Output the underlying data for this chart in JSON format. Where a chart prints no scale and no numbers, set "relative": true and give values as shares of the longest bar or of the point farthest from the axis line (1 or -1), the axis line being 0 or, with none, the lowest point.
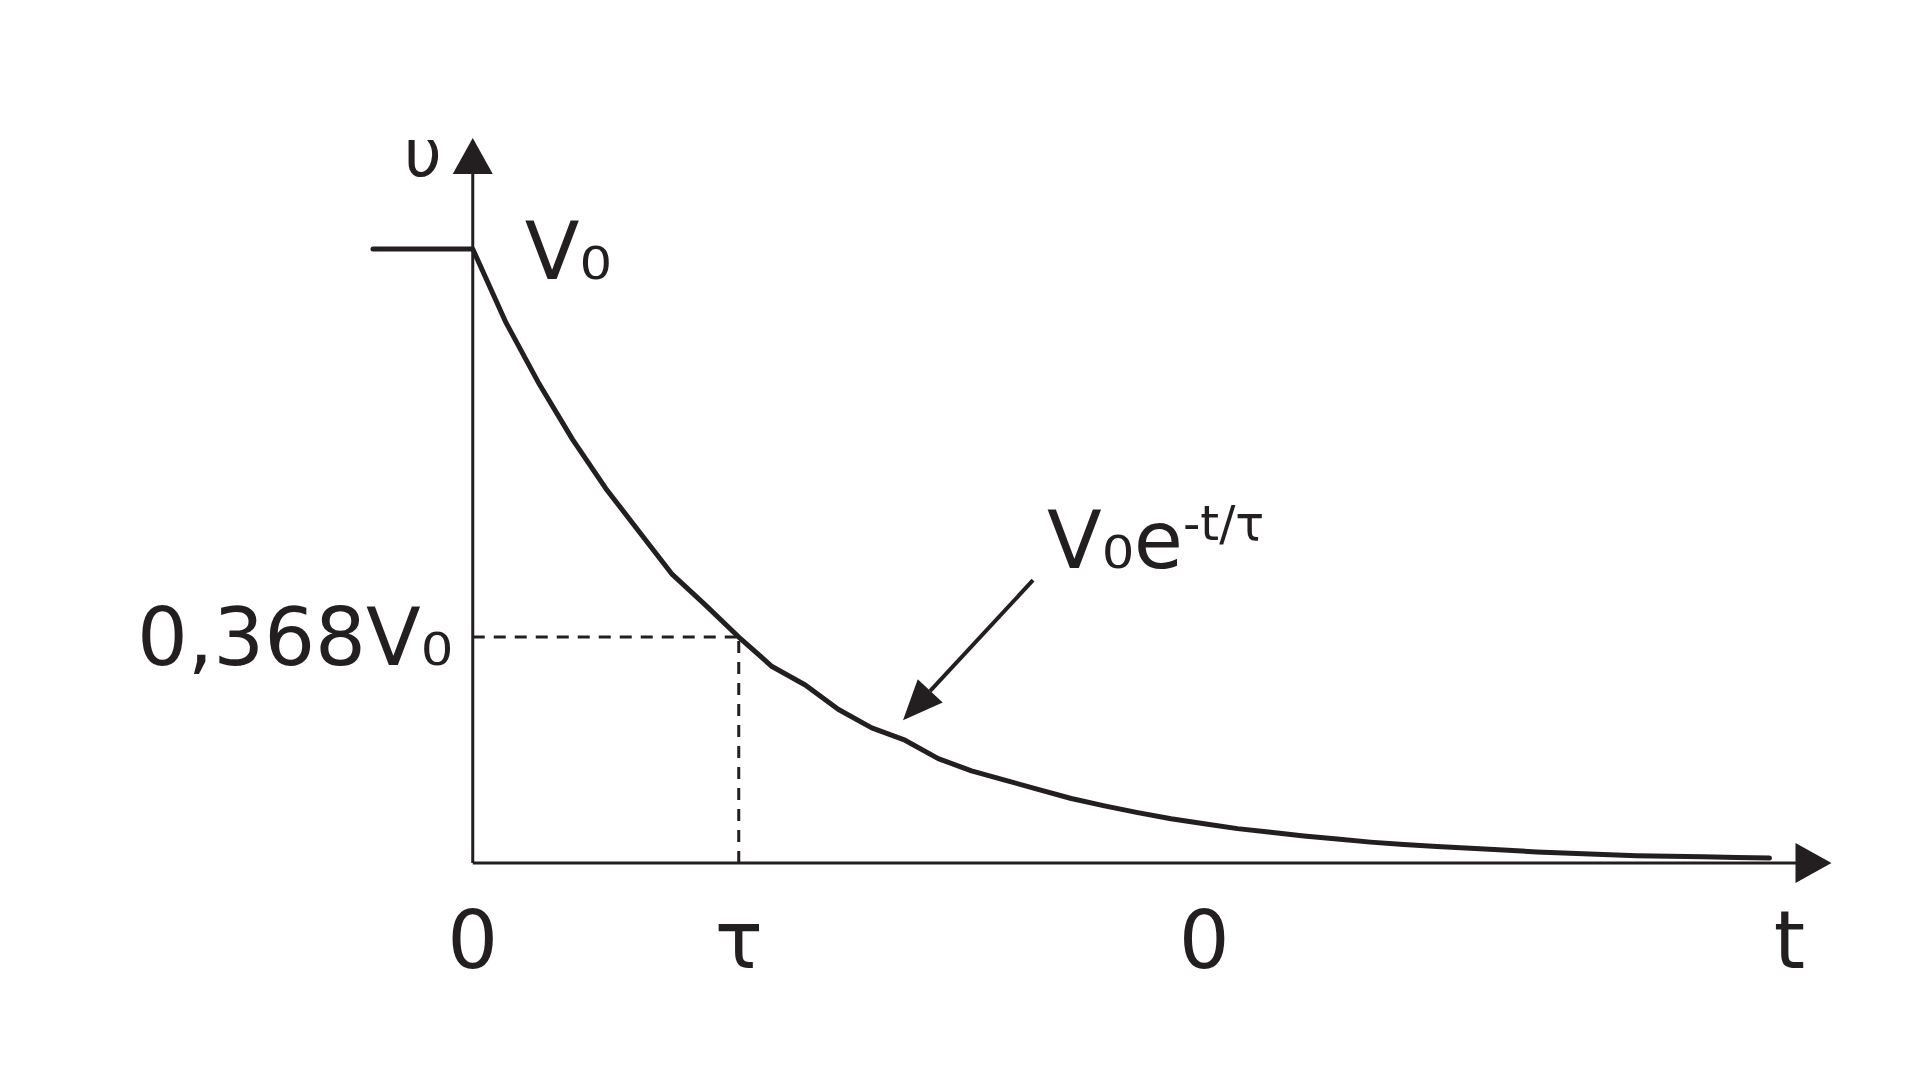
{
  "chart_data": {
    "type": "line",
    "xlabel": "t",
    "ylabel": "υ",
    "relative": true,
    "categories": [
      null,
      null,
      null,
      "0",
      null,
      null,
      null,
      null,
      null,
      null,
      null,
      "τ",
      null,
      null,
      null,
      null,
      null,
      null,
      null,
      null,
      null,
      null,
      null,
      null,
      null,
      "0",
      null,
      null,
      null,
      null,
      null,
      null,
      null,
      null,
      null,
      null,
      null,
      null,
      null,
      null,
      null,
      null,
      null
    ],
    "series": [
      {
        "color": "#231f20",
        "values": [
          1,
          1,
          1,
          1,
          0.88,
          0.78,
          0.69,
          0.61,
          0.54,
          0.47,
          0.42,
          0.368,
          0.32,
          0.29,
          0.25,
          0.22,
          0.2,
          0.17,
          0.15,
          0.135,
          0.12,
          0.105,
          0.093,
          0.082,
          0.072,
          0.064,
          0.056,
          0.05,
          0.044,
          0.039,
          0.034,
          0.03,
          0.027,
          0.024,
          0.021,
          0.018,
          0.016,
          0.014,
          0.012,
          0.011,
          0.01,
          0.009,
          0.008
        ]
      }
    ],
    "line_style": "solid",
    "ref_lines": [
      {
        "axis": "y",
        "value": 0.368,
        "label": "0,368V₀",
        "line_style": "dashed"
      },
      {
        "axis": "x",
        "value": "τ",
        "line_style": "dashed"
      }
    ],
    "annotations": [
      {
        "text": "V₀",
        "x": "0",
        "y": 1
      },
      "V₀e$^{-t/τ}$"
    ]
  }
}
